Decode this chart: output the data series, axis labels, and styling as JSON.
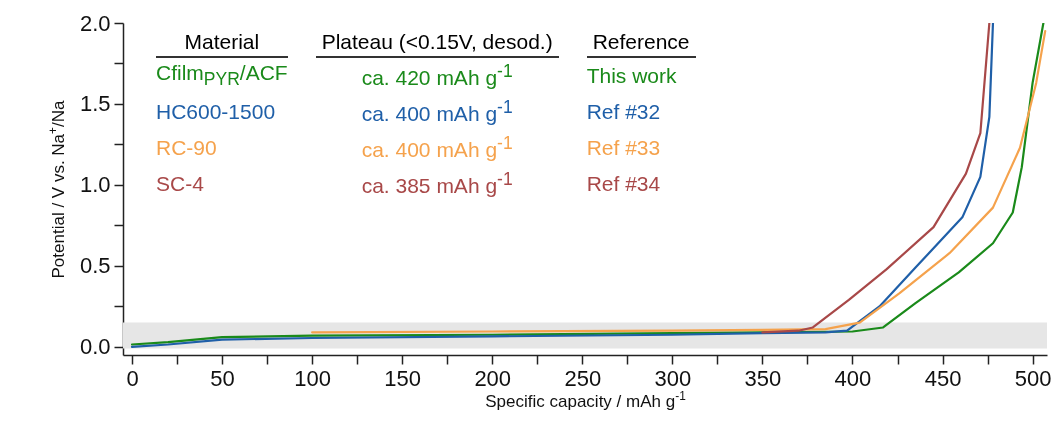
{
  "chart_data": {
    "type": "line",
    "xlabel": "Specific capacity / mAh g$^{-1}$",
    "ylabel": "Potential / V vs. Na$^{+}$/Na",
    "legend_title": "Material",
    "xlim": [
      -5,
      508
    ],
    "ylim": [
      -0.05,
      2.0
    ],
    "xticks": [
      0,
      {
        "value": 25,
        "label": null
      },
      50,
      {
        "value": 75,
        "label": null
      },
      100,
      {
        "value": 125,
        "label": null
      },
      150,
      {
        "value": 175,
        "label": null
      },
      200,
      {
        "value": 225,
        "label": null
      },
      250,
      {
        "value": 275,
        "label": null
      },
      300,
      {
        "value": 325,
        "label": null
      },
      350,
      {
        "value": 375,
        "label": null
      },
      400,
      {
        "value": 425,
        "label": null
      },
      450,
      {
        "value": 475,
        "label": null
      },
      500
    ],
    "yticks": [
      {
        "value": 0,
        "label": "0.0"
      },
      {
        "value": 0.25,
        "label": null
      },
      {
        "value": 0.5,
        "label": "0.5"
      },
      {
        "value": 0.75,
        "label": null
      },
      {
        "value": 1,
        "label": "1.0"
      },
      {
        "value": 1.25,
        "label": null
      },
      {
        "value": 1.5,
        "label": "1.5"
      },
      {
        "value": 1.75,
        "label": null
      },
      {
        "value": 2,
        "label": "2.0"
      }
    ],
    "grid": false,
    "legend": "top left",
    "bands": [
      {
        "axis": "y",
        "from": -0.01,
        "to": 0.15,
        "color": "#e6e6e6"
      }
    ],
    "annotations": [
      "Plateau (<0.15V, desod.)",
      "Reference",
      "ca. 420 mAh g$^{-1}$",
      "This work",
      "ca. 400 mAh g$^{-1}$",
      "Ref #32",
      "ca. 400 mAh g$^{-1}$",
      "Ref #33",
      "ca. 385 mAh g$^{-1}$",
      "Ref #34"
    ],
    "series": [
      {
        "name": "Cfilm$_{PYR}$/ACF",
        "color": "#1a8a1a",
        "x": [
          0,
          20,
          50,
          100,
          200,
          300,
          350,
          400,
          417,
          435,
          459,
          478,
          489,
          494,
          500,
          506
        ],
        "values": [
          0.015,
          0.03,
          0.06,
          0.07,
          0.075,
          0.085,
          0.09,
          0.095,
          0.12,
          0.27,
          0.46,
          0.64,
          0.83,
          1.11,
          1.63,
          2.0
        ]
      },
      {
        "name": "HC600-1500",
        "color": "#1f5fa8",
        "x": [
          0,
          20,
          50,
          100,
          200,
          300,
          350,
          385,
          397,
          415,
          435,
          461,
          471,
          476,
          478
        ],
        "values": [
          0.0,
          0.015,
          0.045,
          0.055,
          0.065,
          0.075,
          0.085,
          0.09,
          0.1,
          0.25,
          0.49,
          0.8,
          1.05,
          1.42,
          2.0
        ]
      },
      {
        "name": "RC-90",
        "color": "#f5a24c",
        "x": [
          100,
          200,
          300,
          350,
          385,
          404,
          426,
          454,
          478,
          493,
          502,
          507
        ],
        "values": [
          0.09,
          0.095,
          0.1,
          0.105,
          0.11,
          0.15,
          0.33,
          0.58,
          0.86,
          1.23,
          1.63,
          1.95
        ]
      },
      {
        "name": "SC-4",
        "color": "#a84848",
        "x": [
          350,
          370,
          378,
          398,
          419,
          445,
          463,
          471,
          476
        ],
        "values": [
          0.09,
          0.1,
          0.12,
          0.29,
          0.48,
          0.74,
          1.07,
          1.32,
          2.0
        ]
      }
    ]
  }
}
